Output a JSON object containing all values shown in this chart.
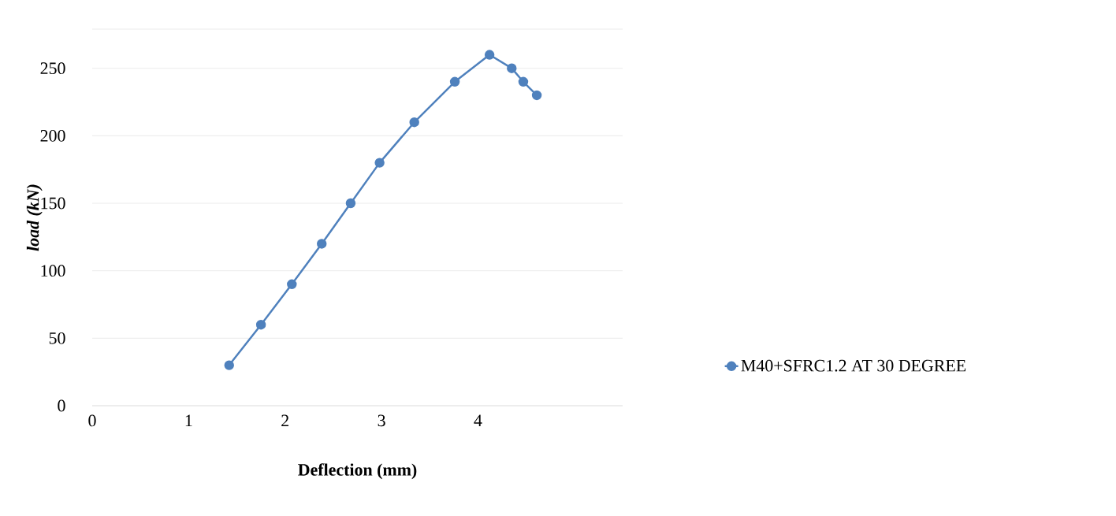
{
  "chart_data": {
    "type": "line",
    "xlabel": "Deflection (mm)",
    "ylabel": "load (kN)",
    "xlim": [
      0,
      5.5
    ],
    "ylim": [
      0,
      279
    ],
    "xticks": [
      0,
      1,
      2,
      3,
      4
    ],
    "yticks": [
      0,
      50,
      100,
      150,
      200,
      250
    ],
    "grid": "y",
    "legend": "right",
    "marker": "circle",
    "line_style": "solid",
    "series": [
      {
        "name": "M40+SFRC1.2 AT 30 DEGREE",
        "color": "#4f81bd",
        "x": [
          1.42,
          1.75,
          2.07,
          2.38,
          2.68,
          2.98,
          3.34,
          3.76,
          4.12,
          4.35,
          4.47,
          4.61
        ],
        "values": [
          30,
          60,
          90,
          120,
          150,
          180,
          210,
          240,
          260,
          250,
          240,
          230
        ]
      }
    ]
  }
}
